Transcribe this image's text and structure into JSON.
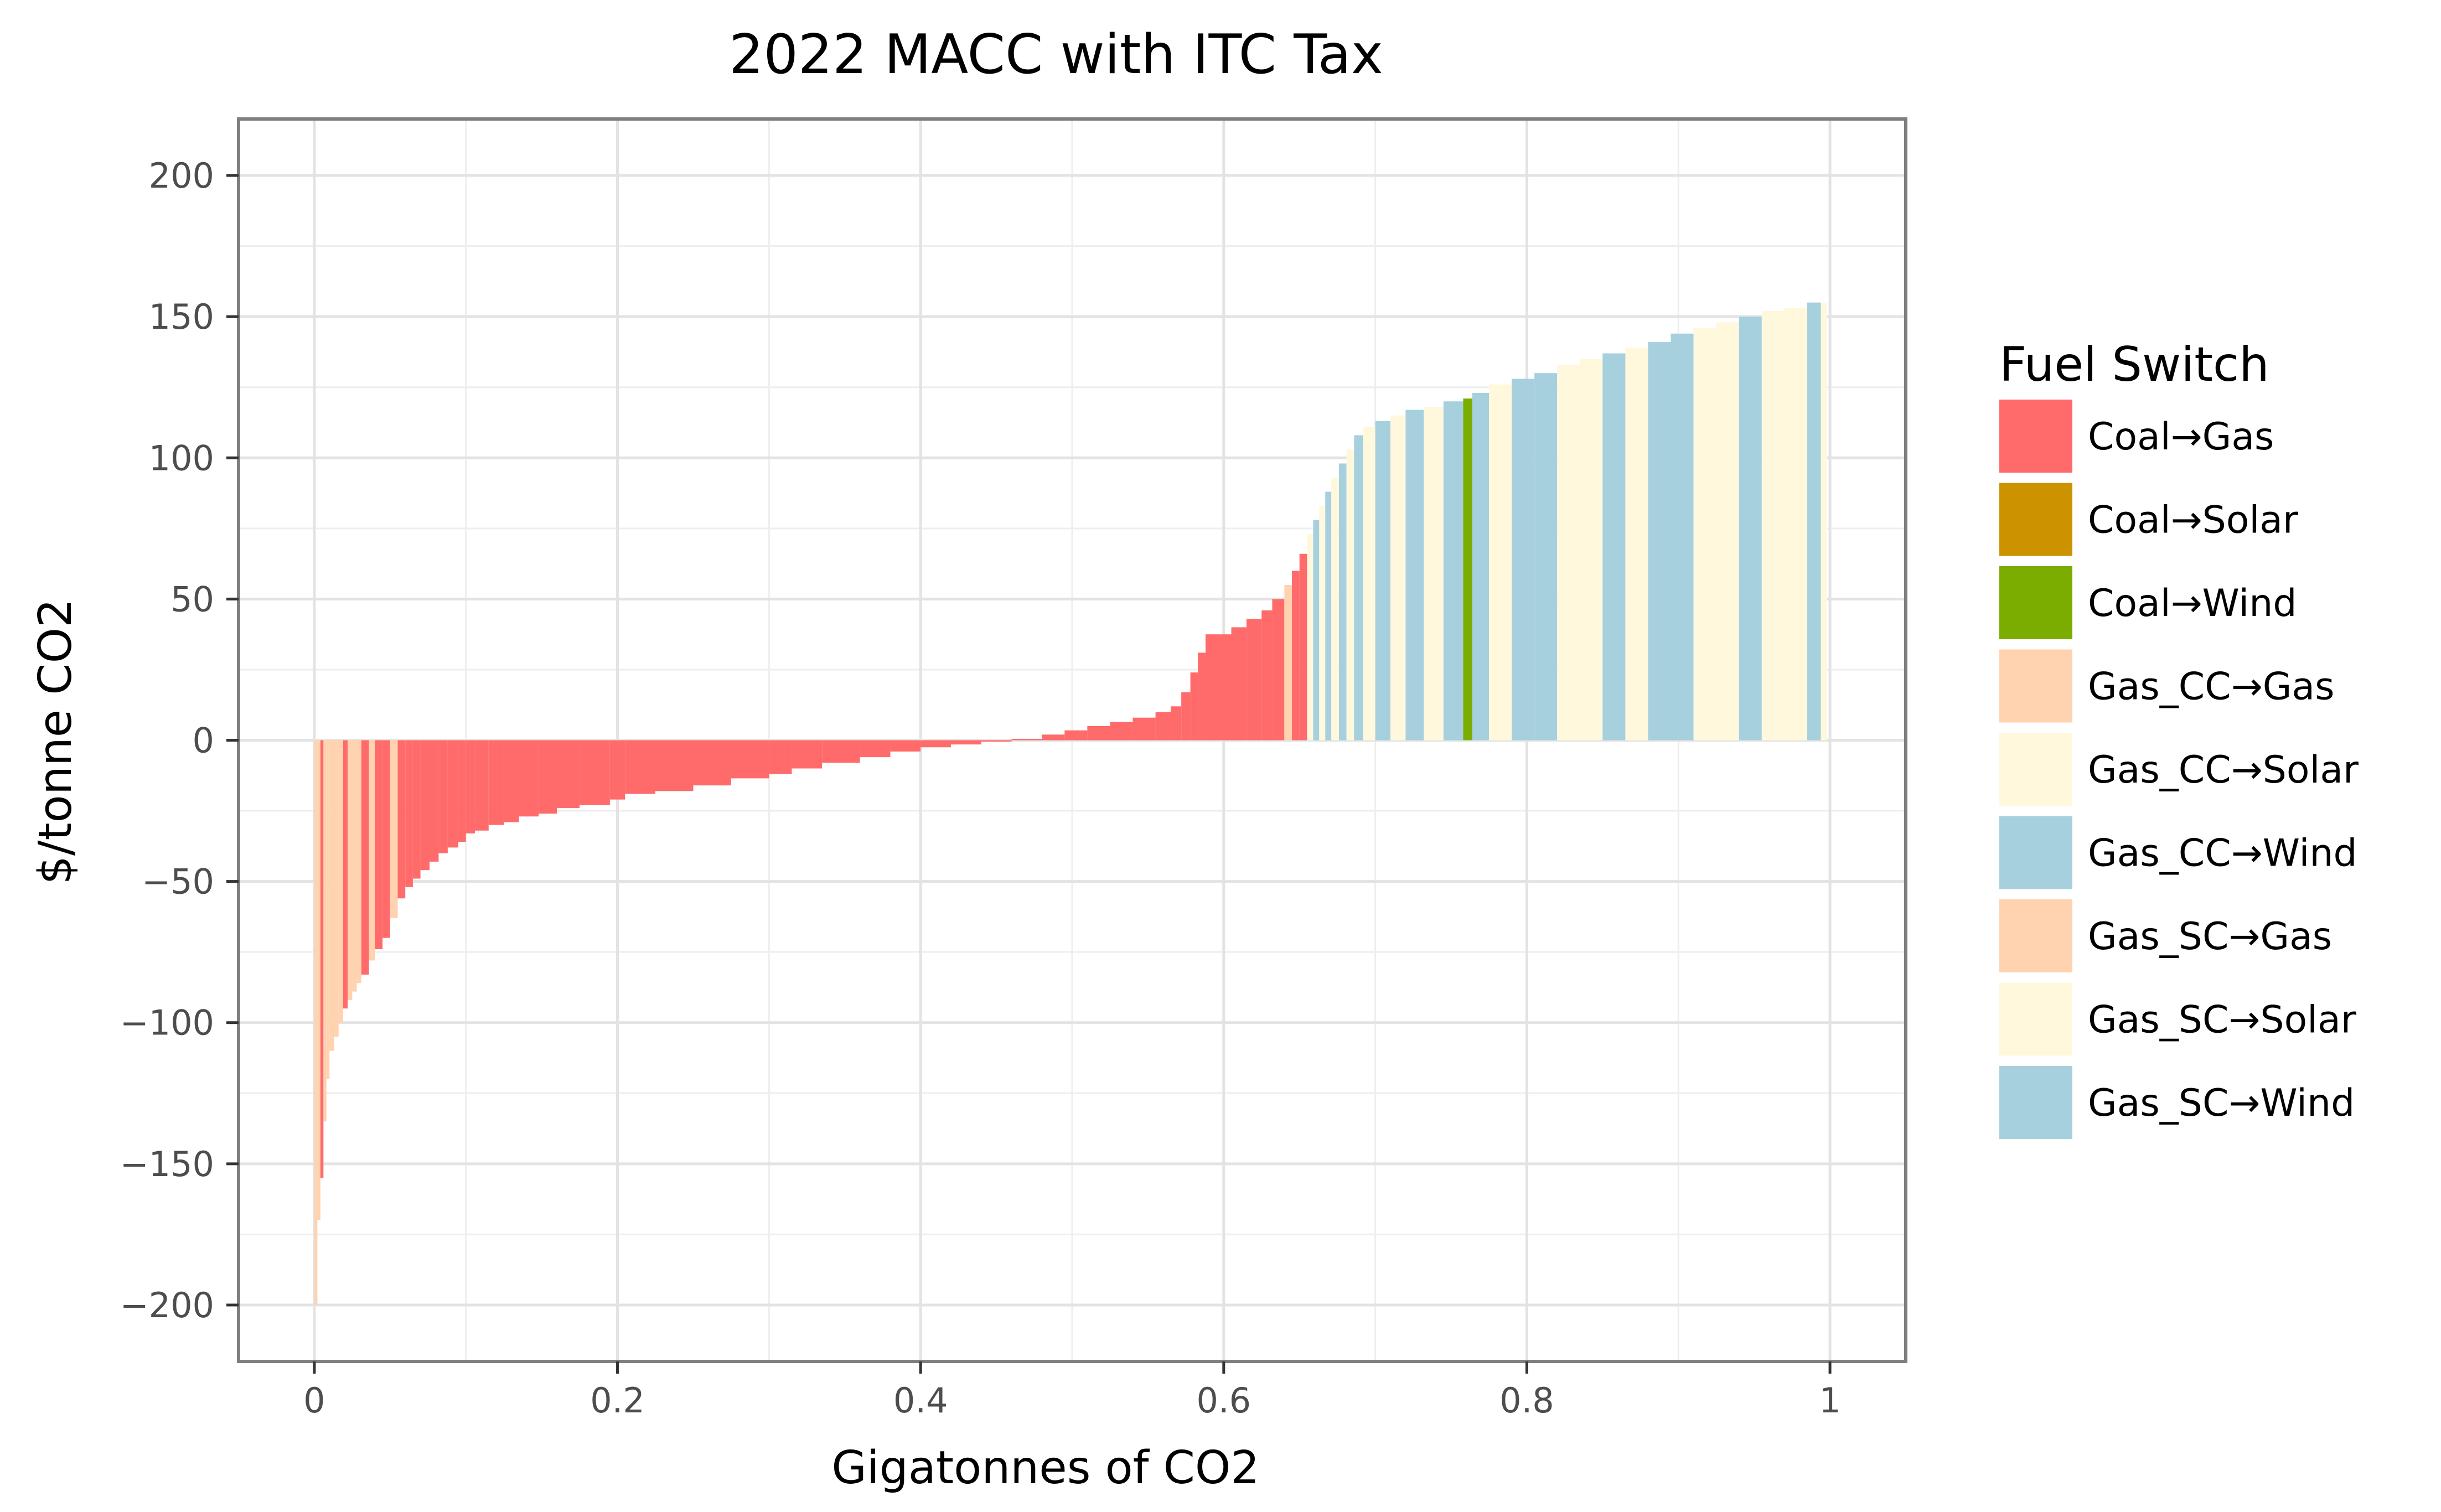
{
  "chart_data": {
    "type": "bar",
    "title": "2022 MACC with ITC Tax",
    "xlabel": "Gigatonnes of CO2",
    "ylabel": "$/tonne CO2",
    "xlim": [
      -0.05,
      1.05
    ],
    "ylim": [
      -220,
      220
    ],
    "x_ticks": [
      {
        "value": 0,
        "label": "0"
      },
      {
        "value": 0.2,
        "label": "0.2"
      },
      {
        "value": 0.4,
        "label": "0.4"
      },
      {
        "value": 0.6,
        "label": "0.6"
      },
      {
        "value": 0.8,
        "label": "0.8"
      },
      {
        "value": 1.0,
        "label": "1"
      }
    ],
    "y_ticks": [
      {
        "value": 200,
        "label": "200"
      },
      {
        "value": 150,
        "label": "150"
      },
      {
        "value": 100,
        "label": "100"
      },
      {
        "value": 50,
        "label": "50"
      },
      {
        "value": 0,
        "label": "0"
      },
      {
        "value": -50,
        "label": "−50"
      },
      {
        "value": -100,
        "label": "−100"
      },
      {
        "value": -150,
        "label": "−150"
      },
      {
        "value": -200,
        "label": "−200"
      }
    ],
    "grid": true,
    "legend": {
      "title": "Fuel Switch",
      "position": "right",
      "entries": [
        {
          "key": "coal_gas",
          "label": "Coal→Gas",
          "color": "#ff6b6b"
        },
        {
          "key": "coal_solar",
          "label": "Coal→Solar",
          "color": "#cc9200"
        },
        {
          "key": "coal_wind",
          "label": "Coal→Wind",
          "color": "#7aad00"
        },
        {
          "key": "gascc_gas",
          "label": "Gas_CC→Gas",
          "color": "#ffd2b0"
        },
        {
          "key": "gascc_solar",
          "label": "Gas_CC→Solar",
          "color": "#fff8dd"
        },
        {
          "key": "gascc_wind",
          "label": "Gas_CC→Wind",
          "color": "#a6d0de"
        },
        {
          "key": "gassc_gas",
          "label": "Gas_SC→Gas",
          "color": "#ffd2b0"
        },
        {
          "key": "gassc_solar",
          "label": "Gas_SC→Solar",
          "color": "#fff8dd"
        },
        {
          "key": "gassc_wind",
          "label": "Gas_SC→Wind",
          "color": "#a6d0de"
        }
      ]
    },
    "bars": [
      {
        "x0": 0.0,
        "x1": 0.002,
        "y": -200,
        "cat": "gassc_gas"
      },
      {
        "x0": 0.002,
        "x1": 0.004,
        "y": -170,
        "cat": "gassc_gas"
      },
      {
        "x0": 0.004,
        "x1": 0.006,
        "y": -155,
        "cat": "coal_gas"
      },
      {
        "x0": 0.006,
        "x1": 0.008,
        "y": -135,
        "cat": "gascc_gas"
      },
      {
        "x0": 0.008,
        "x1": 0.01,
        "y": -120,
        "cat": "gascc_gas"
      },
      {
        "x0": 0.01,
        "x1": 0.013,
        "y": -110,
        "cat": "gascc_gas"
      },
      {
        "x0": 0.013,
        "x1": 0.016,
        "y": -105,
        "cat": "gascc_gas"
      },
      {
        "x0": 0.016,
        "x1": 0.019,
        "y": -100,
        "cat": "gascc_gas"
      },
      {
        "x0": 0.019,
        "x1": 0.022,
        "y": -95,
        "cat": "coal_gas"
      },
      {
        "x0": 0.022,
        "x1": 0.025,
        "y": -92,
        "cat": "gascc_gas"
      },
      {
        "x0": 0.025,
        "x1": 0.028,
        "y": -89,
        "cat": "gascc_gas"
      },
      {
        "x0": 0.028,
        "x1": 0.031,
        "y": -86,
        "cat": "gascc_gas"
      },
      {
        "x0": 0.031,
        "x1": 0.036,
        "y": -83,
        "cat": "coal_gas"
      },
      {
        "x0": 0.036,
        "x1": 0.04,
        "y": -78,
        "cat": "gascc_gas"
      },
      {
        "x0": 0.04,
        "x1": 0.045,
        "y": -74,
        "cat": "coal_gas"
      },
      {
        "x0": 0.045,
        "x1": 0.05,
        "y": -70,
        "cat": "coal_gas"
      },
      {
        "x0": 0.05,
        "x1": 0.055,
        "y": -63,
        "cat": "gascc_gas"
      },
      {
        "x0": 0.055,
        "x1": 0.06,
        "y": -56,
        "cat": "coal_gas"
      },
      {
        "x0": 0.06,
        "x1": 0.065,
        "y": -52,
        "cat": "coal_gas"
      },
      {
        "x0": 0.065,
        "x1": 0.07,
        "y": -49,
        "cat": "coal_gas"
      },
      {
        "x0": 0.07,
        "x1": 0.076,
        "y": -46,
        "cat": "coal_gas"
      },
      {
        "x0": 0.076,
        "x1": 0.082,
        "y": -43,
        "cat": "coal_gas"
      },
      {
        "x0": 0.082,
        "x1": 0.088,
        "y": -40,
        "cat": "coal_gas"
      },
      {
        "x0": 0.088,
        "x1": 0.095,
        "y": -38,
        "cat": "coal_gas"
      },
      {
        "x0": 0.095,
        "x1": 0.1,
        "y": -36,
        "cat": "coal_gas"
      },
      {
        "x0": 0.1,
        "x1": 0.106,
        "y": -33,
        "cat": "coal_gas"
      },
      {
        "x0": 0.106,
        "x1": 0.115,
        "y": -32,
        "cat": "coal_gas"
      },
      {
        "x0": 0.115,
        "x1": 0.125,
        "y": -30,
        "cat": "coal_gas"
      },
      {
        "x0": 0.125,
        "x1": 0.135,
        "y": -29,
        "cat": "coal_gas"
      },
      {
        "x0": 0.135,
        "x1": 0.148,
        "y": -27,
        "cat": "coal_gas"
      },
      {
        "x0": 0.148,
        "x1": 0.16,
        "y": -26,
        "cat": "coal_gas"
      },
      {
        "x0": 0.16,
        "x1": 0.175,
        "y": -24,
        "cat": "coal_gas"
      },
      {
        "x0": 0.175,
        "x1": 0.195,
        "y": -23,
        "cat": "coal_gas"
      },
      {
        "x0": 0.195,
        "x1": 0.205,
        "y": -21,
        "cat": "coal_gas"
      },
      {
        "x0": 0.205,
        "x1": 0.225,
        "y": -19,
        "cat": "coal_gas"
      },
      {
        "x0": 0.225,
        "x1": 0.25,
        "y": -18,
        "cat": "coal_gas"
      },
      {
        "x0": 0.25,
        "x1": 0.275,
        "y": -16,
        "cat": "coal_gas"
      },
      {
        "x0": 0.275,
        "x1": 0.3,
        "y": -13.5,
        "cat": "coal_gas"
      },
      {
        "x0": 0.3,
        "x1": 0.315,
        "y": -12,
        "cat": "coal_gas"
      },
      {
        "x0": 0.315,
        "x1": 0.335,
        "y": -10,
        "cat": "coal_gas"
      },
      {
        "x0": 0.335,
        "x1": 0.36,
        "y": -8,
        "cat": "coal_gas"
      },
      {
        "x0": 0.36,
        "x1": 0.38,
        "y": -6,
        "cat": "coal_gas"
      },
      {
        "x0": 0.38,
        "x1": 0.4,
        "y": -4,
        "cat": "coal_gas"
      },
      {
        "x0": 0.4,
        "x1": 0.42,
        "y": -2.5,
        "cat": "coal_gas"
      },
      {
        "x0": 0.42,
        "x1": 0.44,
        "y": -1.5,
        "cat": "coal_gas"
      },
      {
        "x0": 0.44,
        "x1": 0.46,
        "y": -0.5,
        "cat": "coal_gas"
      },
      {
        "x0": 0.46,
        "x1": 0.48,
        "y": 0.5,
        "cat": "coal_gas"
      },
      {
        "x0": 0.48,
        "x1": 0.495,
        "y": 2,
        "cat": "coal_gas"
      },
      {
        "x0": 0.495,
        "x1": 0.51,
        "y": 3.5,
        "cat": "coal_gas"
      },
      {
        "x0": 0.51,
        "x1": 0.525,
        "y": 5,
        "cat": "coal_gas"
      },
      {
        "x0": 0.525,
        "x1": 0.54,
        "y": 6.5,
        "cat": "coal_gas"
      },
      {
        "x0": 0.54,
        "x1": 0.555,
        "y": 8,
        "cat": "coal_gas"
      },
      {
        "x0": 0.555,
        "x1": 0.565,
        "y": 10,
        "cat": "coal_gas"
      },
      {
        "x0": 0.565,
        "x1": 0.572,
        "y": 12,
        "cat": "coal_gas"
      },
      {
        "x0": 0.572,
        "x1": 0.578,
        "y": 17,
        "cat": "coal_gas"
      },
      {
        "x0": 0.578,
        "x1": 0.583,
        "y": 24,
        "cat": "coal_gas"
      },
      {
        "x0": 0.583,
        "x1": 0.588,
        "y": 31,
        "cat": "coal_gas"
      },
      {
        "x0": 0.588,
        "x1": 0.605,
        "y": 37.5,
        "cat": "coal_gas"
      },
      {
        "x0": 0.605,
        "x1": 0.615,
        "y": 40,
        "cat": "coal_gas"
      },
      {
        "x0": 0.615,
        "x1": 0.625,
        "y": 43,
        "cat": "coal_gas"
      },
      {
        "x0": 0.625,
        "x1": 0.632,
        "y": 46,
        "cat": "coal_gas"
      },
      {
        "x0": 0.632,
        "x1": 0.64,
        "y": 50,
        "cat": "coal_gas"
      },
      {
        "x0": 0.64,
        "x1": 0.645,
        "y": 55,
        "cat": "gascc_gas"
      },
      {
        "x0": 0.645,
        "x1": 0.65,
        "y": 60,
        "cat": "coal_gas"
      },
      {
        "x0": 0.65,
        "x1": 0.655,
        "y": 66,
        "cat": "coal_gas"
      },
      {
        "x0": 0.655,
        "x1": 0.659,
        "y": 73,
        "cat": "gascc_solar"
      },
      {
        "x0": 0.659,
        "x1": 0.663,
        "y": 78,
        "cat": "gascc_wind"
      },
      {
        "x0": 0.663,
        "x1": 0.667,
        "y": 83,
        "cat": "gascc_solar"
      },
      {
        "x0": 0.667,
        "x1": 0.671,
        "y": 88,
        "cat": "gascc_wind"
      },
      {
        "x0": 0.671,
        "x1": 0.676,
        "y": 93,
        "cat": "gascc_solar"
      },
      {
        "x0": 0.676,
        "x1": 0.681,
        "y": 98,
        "cat": "gascc_wind"
      },
      {
        "x0": 0.681,
        "x1": 0.686,
        "y": 103,
        "cat": "gascc_solar"
      },
      {
        "x0": 0.686,
        "x1": 0.692,
        "y": 108,
        "cat": "gascc_wind"
      },
      {
        "x0": 0.692,
        "x1": 0.7,
        "y": 111,
        "cat": "gascc_solar"
      },
      {
        "x0": 0.7,
        "x1": 0.71,
        "y": 113,
        "cat": "gascc_wind"
      },
      {
        "x0": 0.71,
        "x1": 0.72,
        "y": 115,
        "cat": "gascc_solar"
      },
      {
        "x0": 0.72,
        "x1": 0.732,
        "y": 117,
        "cat": "gascc_wind"
      },
      {
        "x0": 0.732,
        "x1": 0.745,
        "y": 118,
        "cat": "gascc_solar"
      },
      {
        "x0": 0.745,
        "x1": 0.758,
        "y": 120,
        "cat": "gascc_wind"
      },
      {
        "x0": 0.758,
        "x1": 0.764,
        "y": 121,
        "cat": "coal_wind"
      },
      {
        "x0": 0.764,
        "x1": 0.775,
        "y": 123,
        "cat": "gascc_wind"
      },
      {
        "x0": 0.775,
        "x1": 0.79,
        "y": 126,
        "cat": "gascc_solar"
      },
      {
        "x0": 0.79,
        "x1": 0.805,
        "y": 128,
        "cat": "gascc_wind"
      },
      {
        "x0": 0.805,
        "x1": 0.82,
        "y": 130,
        "cat": "gascc_wind"
      },
      {
        "x0": 0.82,
        "x1": 0.835,
        "y": 133,
        "cat": "gascc_solar"
      },
      {
        "x0": 0.835,
        "x1": 0.85,
        "y": 135,
        "cat": "gascc_solar"
      },
      {
        "x0": 0.85,
        "x1": 0.865,
        "y": 137,
        "cat": "gascc_wind"
      },
      {
        "x0": 0.865,
        "x1": 0.88,
        "y": 139,
        "cat": "gascc_solar"
      },
      {
        "x0": 0.88,
        "x1": 0.895,
        "y": 141,
        "cat": "gascc_wind"
      },
      {
        "x0": 0.895,
        "x1": 0.91,
        "y": 144,
        "cat": "gascc_wind"
      },
      {
        "x0": 0.91,
        "x1": 0.925,
        "y": 146,
        "cat": "gascc_solar"
      },
      {
        "x0": 0.925,
        "x1": 0.94,
        "y": 148,
        "cat": "gascc_solar"
      },
      {
        "x0": 0.94,
        "x1": 0.955,
        "y": 150,
        "cat": "gascc_wind"
      },
      {
        "x0": 0.955,
        "x1": 0.97,
        "y": 152,
        "cat": "gascc_solar"
      },
      {
        "x0": 0.97,
        "x1": 0.985,
        "y": 153,
        "cat": "gascc_solar"
      },
      {
        "x0": 0.985,
        "x1": 0.994,
        "y": 155,
        "cat": "gascc_wind"
      },
      {
        "x0": 0.994,
        "x1": 0.998,
        "y": 155,
        "cat": "gascc_solar"
      }
    ]
  }
}
